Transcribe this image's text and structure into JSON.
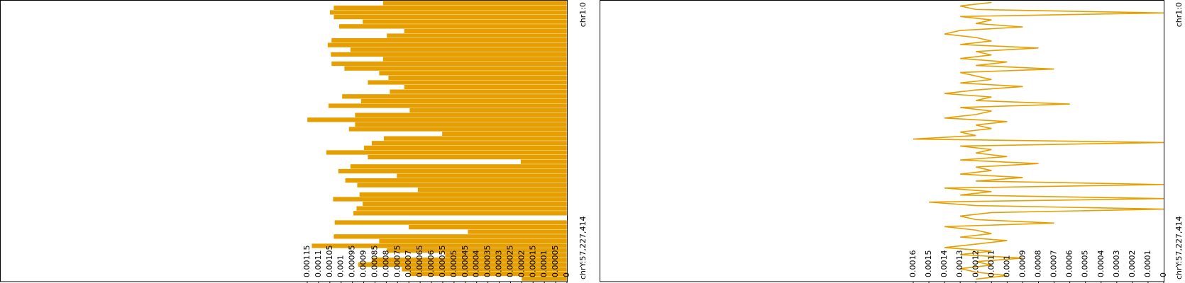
{
  "chart_data": [
    {
      "type": "bar",
      "orientation": "horizontal",
      "x_reversed": true,
      "color": "#e69f00",
      "categories": [
        "chr1:0",
        null,
        null,
        null,
        null,
        null,
        null,
        null,
        null,
        null,
        null,
        null,
        null,
        null,
        null,
        null,
        null,
        null,
        null,
        null,
        null,
        null,
        null,
        null,
        null,
        null,
        null,
        null,
        null,
        null,
        null,
        null,
        null,
        null,
        null,
        null,
        null,
        null,
        null,
        null,
        null,
        null,
        null,
        null,
        null,
        null,
        null,
        null,
        null,
        null,
        null,
        null,
        null,
        null,
        null,
        null,
        null,
        null,
        null,
        "chrY:57,227,414"
      ],
      "values": [
        0.000815,
        0.001033,
        0.00105,
        0.001033,
        0.000905,
        0.001009,
        0.000721,
        0.000798,
        0.001043,
        0.00106,
        0.000959,
        0.001046,
        0.000815,
        0.001043,
        0.000986,
        0.000832,
        0.000791,
        0.000882,
        0.000721,
        0.000785,
        0.000996,
        0.000912,
        0.001056,
        0.000697,
        0.000939,
        0.00115,
        0.000939,
        0.000966,
        0.000553,
        0.000811,
        0.000865,
        0.000899,
        0.001066,
        0.000882,
        0.000205,
        0.000959,
        0.001013,
        0.000754,
        0.000982,
        0.000929,
        0.000661,
        0.000919,
        0.001036,
        0.000905,
        0.000932,
        0.000946,
        0,
        0.001029,
        0.000701,
        0.000439,
        0.001033,
        0.000832,
        0.00113,
        0.000798,
        0.00054,
        0.000865,
        0.000925,
        0.000731,
        0.000697,
        0.000201
      ],
      "xlim": [
        0,
        0.00115
      ],
      "xticks": [
        0,
        5e-05,
        0.0001,
        0.00015,
        0.0002,
        0.00025,
        0.0003,
        0.00035,
        0.0004,
        0.00045,
        0.0005,
        0.00055,
        0.0006,
        0.00065,
        0.0007,
        0.00075,
        0.0008,
        0.00085,
        0.0009,
        0.00095,
        0.001,
        0.00105,
        0.0011,
        0.00115
      ]
    },
    {
      "type": "line",
      "orientation": "horizontal",
      "x_reversed": true,
      "color": "#e69f00",
      "categories": [
        "chr1:0",
        null,
        null,
        null,
        null,
        null,
        null,
        null,
        null,
        null,
        null,
        null,
        null,
        null,
        null,
        null,
        null,
        null,
        null,
        null,
        null,
        null,
        null,
        null,
        null,
        null,
        null,
        null,
        null,
        null,
        null,
        null,
        null,
        null,
        null,
        null,
        null,
        null,
        null,
        null,
        null,
        null,
        null,
        null,
        null,
        null,
        null,
        null,
        null,
        null,
        null,
        null,
        null,
        null,
        null,
        null,
        null,
        null,
        null,
        null,
        null,
        null,
        null,
        null,
        null,
        null,
        null,
        null,
        null,
        null,
        null,
        null,
        null,
        null,
        null,
        null,
        null,
        null,
        null,
        "chrY:57,227,414"
      ],
      "values": [
        0.0011,
        0.0013,
        0.0012,
        0,
        0.0013,
        0.0011,
        0.0012,
        0.0009,
        0.0013,
        0.0014,
        0.0012,
        0.0011,
        0.0013,
        0.0008,
        0.0012,
        0.0011,
        0.0013,
        0.001,
        0.0012,
        0.0007,
        0.0013,
        0.0012,
        0.0011,
        0.0013,
        0.0009,
        0.0012,
        0.0014,
        0.0011,
        0.0012,
        0.0006,
        0.0013,
        0.0011,
        0.0012,
        0.0014,
        0.001,
        0.0012,
        0.0011,
        0.0013,
        0.0012,
        0.0016,
        0,
        0.0013,
        0.0011,
        0.0012,
        0.001,
        0.0013,
        0.0008,
        0.0012,
        0.0011,
        0.0013,
        0.0009,
        0.0012,
        0,
        0.0014,
        0.0011,
        0.0013,
        0,
        0.0015,
        0.0012,
        0,
        0.0011,
        0.0013,
        0.0012,
        0.0007,
        0.0014,
        0.0012,
        0.0011,
        0.0013,
        0.001,
        0.0012,
        0.0014,
        0.0011,
        0.0013,
        0.0009,
        0.0012,
        0.0011,
        0.0013,
        0.0012,
        0.001,
        0.0012
      ],
      "xlim": [
        0,
        0.0016
      ],
      "xticks": [
        0,
        0.0001,
        0.0002,
        0.0003,
        0.0004,
        0.0005,
        0.0006,
        0.0007,
        0.0008,
        0.0009,
        0.001,
        0.0011,
        0.0012,
        0.0013,
        0.0014,
        0.0015,
        0.0016
      ]
    }
  ]
}
